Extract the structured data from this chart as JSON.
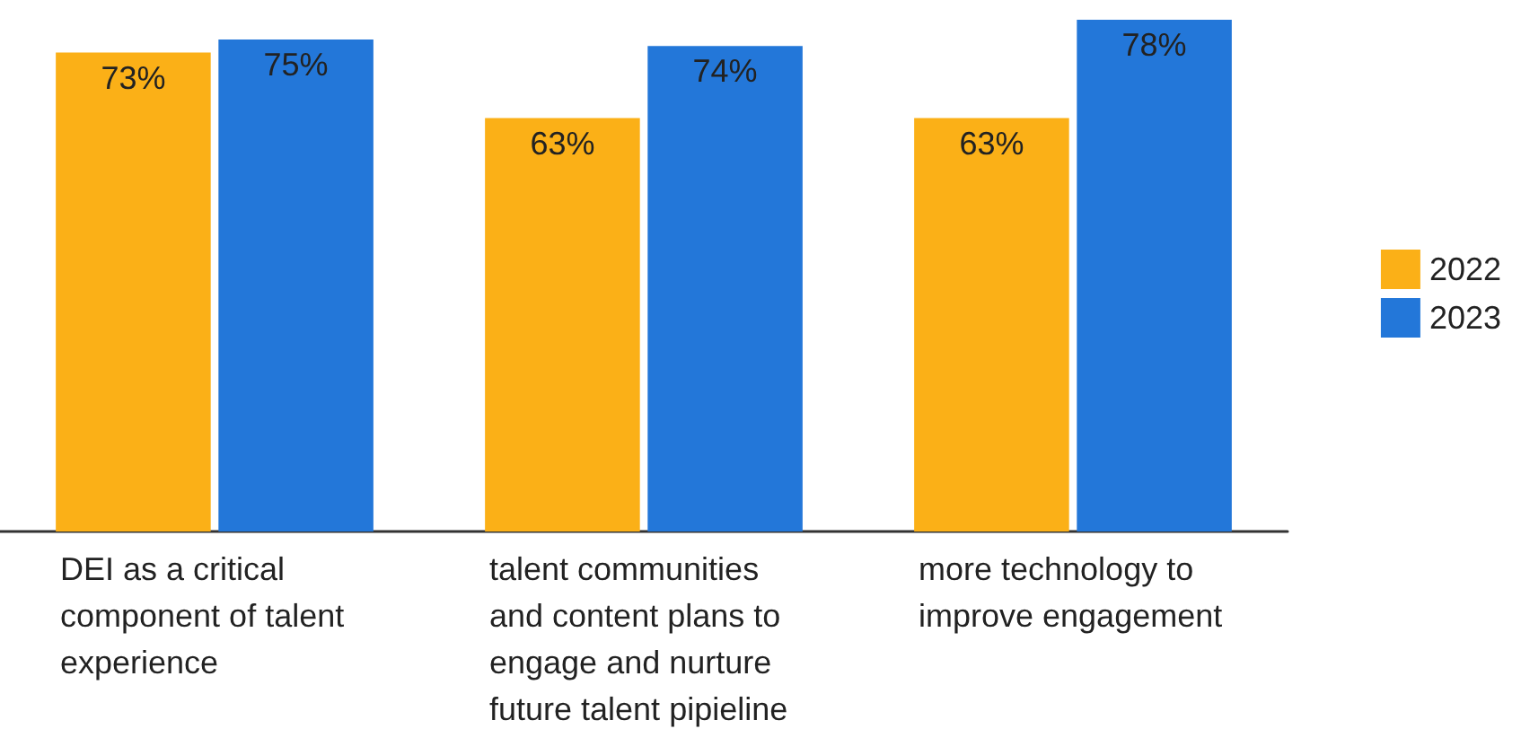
{
  "chart_data": {
    "type": "bar",
    "categories": [
      "DEI as a critical component of talent experience",
      "talent communities and content plans to engage and nurture future talent pipieline",
      "more technology to improve engagement"
    ],
    "series": [
      {
        "name": "2022",
        "color": "#fbb017",
        "values": [
          73,
          63,
          63
        ],
        "value_labels": [
          "73%",
          "63%",
          "63%"
        ]
      },
      {
        "name": "2023",
        "color": "#2377d9",
        "values": [
          75,
          74,
          78
        ],
        "value_labels": [
          "75%",
          "74%",
          "78%"
        ]
      }
    ],
    "tick_labels": "x",
    "legend": "right"
  }
}
